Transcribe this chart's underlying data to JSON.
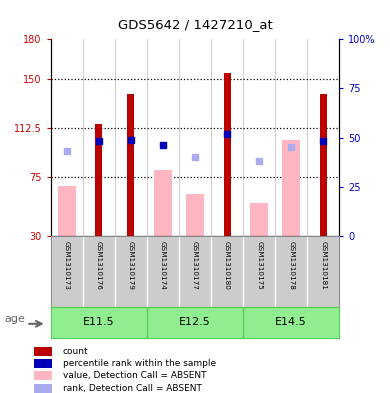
{
  "title": "GDS5642 / 1427210_at",
  "samples": [
    "GSM1310173",
    "GSM1310176",
    "GSM1310179",
    "GSM1310174",
    "GSM1310177",
    "GSM1310180",
    "GSM1310175",
    "GSM1310178",
    "GSM1310181"
  ],
  "count_values": [
    null,
    115,
    138,
    null,
    null,
    154,
    null,
    null,
    138
  ],
  "count_color": "#BB0000",
  "absent_value_bars": [
    68,
    null,
    null,
    80,
    62,
    null,
    55,
    103,
    null
  ],
  "absent_value_color": "#FFB6C1",
  "percentile_rank_present": [
    null,
    48,
    49,
    46,
    null,
    52,
    null,
    null,
    48
  ],
  "percentile_rank_present_color": "#0000BB",
  "percentile_rank_absent": [
    43,
    null,
    null,
    null,
    40,
    null,
    38,
    45,
    null
  ],
  "percentile_rank_absent_color": "#AAAAEE",
  "ylim_left": [
    30,
    180
  ],
  "ylim_right": [
    0,
    100
  ],
  "yticks_left": [
    30,
    75,
    112.5,
    150,
    180
  ],
  "yticks_right": [
    0,
    25,
    50,
    75,
    100
  ],
  "ytick_labels_left": [
    "30",
    "75",
    "112.5",
    "150",
    "180"
  ],
  "ytick_labels_right": [
    "0",
    "25",
    "50",
    "75",
    "100%"
  ],
  "hlines": [
    75,
    112.5,
    150
  ],
  "left_axis_color": "#CC0000",
  "right_axis_color": "#0000CC",
  "legend_items": [
    {
      "label": "count",
      "color": "#BB0000"
    },
    {
      "label": "percentile rank within the sample",
      "color": "#0000BB"
    },
    {
      "label": "value, Detection Call = ABSENT",
      "color": "#FFB6C1"
    },
    {
      "label": "rank, Detection Call = ABSENT",
      "color": "#AAAAEE"
    }
  ],
  "group_labels": [
    "E11.5",
    "E12.5",
    "E14.5"
  ],
  "group_ranges": [
    [
      0,
      2
    ],
    [
      3,
      5
    ],
    [
      6,
      8
    ]
  ],
  "group_color": "#90EE90",
  "group_border_color": "#55CC55",
  "sample_bg_color": "#CCCCCC",
  "sample_border_color": "#888888",
  "age_label": "age"
}
